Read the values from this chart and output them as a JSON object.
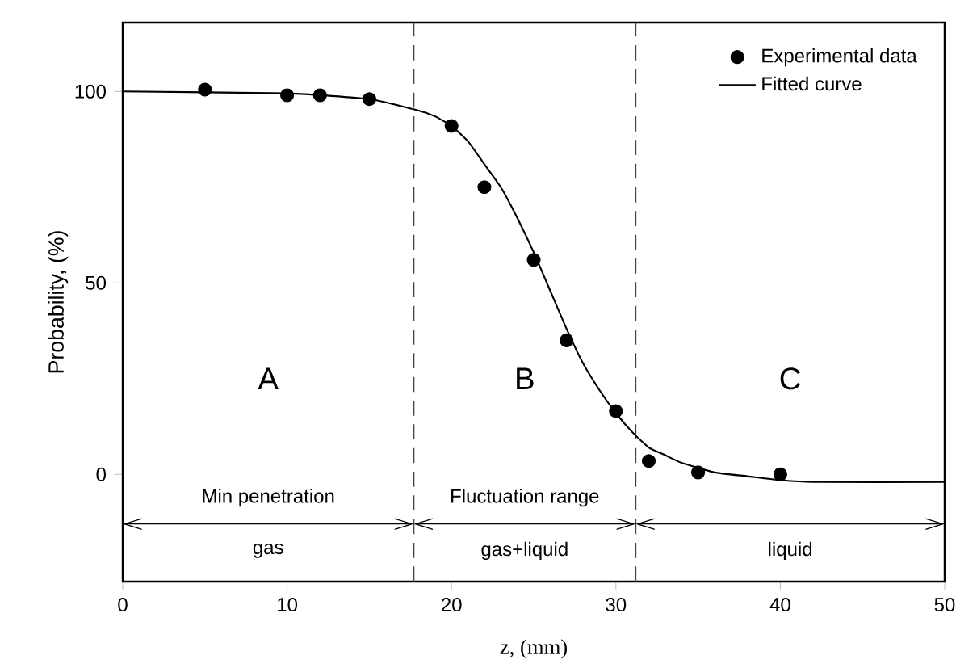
{
  "chart_data": {
    "type": "scatter",
    "xlabel": "z, (mm)",
    "ylabel": "Probability, (%)",
    "xlim": [
      0,
      50
    ],
    "xticks": [
      0,
      10,
      20,
      30,
      40,
      50
    ],
    "ylim": [
      -28,
      118
    ],
    "yticks": [
      0,
      50,
      100
    ],
    "grid": false,
    "legend": "top right",
    "series": [
      {
        "name": "Experimental data",
        "marker": "circle",
        "color": "#000000",
        "x": [
          5,
          10,
          12,
          15,
          20,
          22,
          25,
          27,
          30,
          32,
          35,
          40
        ],
        "values": [
          100.5,
          99,
          99,
          98,
          91,
          75,
          56,
          35,
          16.5,
          3.5,
          0.5,
          0
        ]
      },
      {
        "name": "Fitted curve",
        "type": "line",
        "marker": "none",
        "line_style": "solid",
        "color": "#000000",
        "x": [
          0,
          10,
          15,
          18,
          19,
          20,
          21,
          22,
          23,
          24,
          25,
          26,
          27,
          28,
          29,
          30,
          31,
          32,
          33,
          34,
          36,
          38,
          40,
          42,
          50
        ],
        "values": [
          100,
          99.5,
          98,
          95,
          93.5,
          91,
          87,
          81,
          75,
          67,
          58,
          48,
          38,
          29,
          22,
          16,
          11,
          7,
          5,
          3,
          0.5,
          -0.5,
          -1.5,
          -2,
          -2
        ]
      }
    ],
    "ref_lines": [
      {
        "axis": "x",
        "value": 17.7,
        "line_style": "dashed",
        "color": "#444444"
      },
      {
        "axis": "x",
        "value": 31.2,
        "line_style": "dashed",
        "color": "#444444"
      }
    ],
    "annotations": [
      "A",
      "B",
      "C",
      "Min penetration",
      "gas",
      "Fluctuation range",
      "gas+liquid",
      "liquid"
    ]
  }
}
